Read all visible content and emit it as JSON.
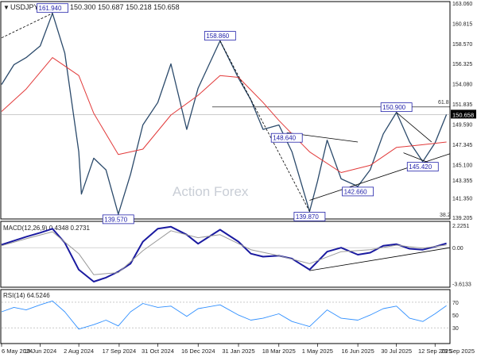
{
  "header": {
    "symbol_label": "USDJPY,Daily",
    "ohlc_values": "150.300 150.687 150.218 150.658",
    "watermark": "Action Forex"
  },
  "colors": {
    "price_line": "#2b4a6b",
    "ma_line": "#e23a3a",
    "macd_line": "#1a1aa0",
    "signal_line": "#9a9a9a",
    "rsi_line": "#2f8fff",
    "label_border": "#2222aa",
    "trendline": "#000000",
    "grid_text": "#222222",
    "current_price_box": "#000000"
  },
  "chart_data": [
    {
      "type": "line",
      "panel": "price",
      "title": "USDJPY,Daily",
      "y_ticks": [
        "163.060",
        "160.815",
        "158.570",
        "156.325",
        "154.080",
        "151.835",
        "149.590",
        "147.345",
        "145.100",
        "143.355",
        "141.350",
        "139.205"
      ],
      "ylim": [
        139.205,
        163.06
      ],
      "current_price": "150.658",
      "fib_label": "61.8",
      "fib_label_low": "38.2",
      "fib_level": 151.5,
      "series": [
        {
          "name": "",
          "x": [
            "2024-05-06",
            "2024-05-20",
            "2024-06-03",
            "2024-06-19",
            "2024-07-03",
            "2024-07-17",
            "2024-08-02",
            "2024-08-05",
            "2024-08-19",
            "2024-09-02",
            "2024-09-16",
            "2024-09-30",
            "2024-10-14",
            "2024-10-31",
            "2024-11-15",
            "2024-12-03",
            "2024-12-16",
            "2025-01-10",
            "2025-01-31",
            "2025-02-14",
            "2025-02-28",
            "2025-03-18",
            "2025-04-02",
            "2025-04-22",
            "2025-05-01",
            "2025-05-12",
            "2025-05-28",
            "2025-06-16",
            "2025-06-30",
            "2025-07-15",
            "2025-07-30",
            "2025-08-14",
            "2025-08-29",
            "2025-09-12",
            "2025-09-25"
          ],
          "values": [
            154.0,
            156.2,
            157.0,
            158.3,
            161.94,
            157.5,
            146.5,
            141.8,
            145.8,
            144.5,
            139.57,
            144.0,
            149.5,
            152.0,
            156.3,
            149.0,
            153.6,
            158.86,
            154.7,
            152.3,
            149.0,
            149.5,
            146.5,
            139.87,
            143.2,
            147.8,
            143.5,
            142.66,
            144.5,
            148.5,
            150.9,
            147.6,
            145.42,
            147.5,
            150.658
          ]
        },
        {
          "name": "",
          "x": [
            "2024-05-06",
            "2024-06-03",
            "2024-07-03",
            "2024-08-02",
            "2024-08-19",
            "2024-09-16",
            "2024-10-14",
            "2024-11-15",
            "2024-12-16",
            "2025-01-10",
            "2025-01-31",
            "2025-02-28",
            "2025-03-18",
            "2025-04-22",
            "2025-05-28",
            "2025-06-30",
            "2025-07-30",
            "2025-08-29",
            "2025-09-25"
          ],
          "values": [
            151.0,
            153.5,
            157.0,
            155.0,
            150.8,
            146.2,
            146.8,
            150.6,
            152.8,
            155.0,
            154.8,
            152.0,
            150.0,
            146.5,
            144.2,
            145.0,
            147.0,
            147.3,
            147.6
          ]
        }
      ],
      "annotations": [
        {
          "label": "161.940",
          "x": "2024-07-03",
          "value": 161.94
        },
        {
          "label": "139.570",
          "x": "2024-09-16",
          "value": 139.57
        },
        {
          "label": "158.860",
          "x": "2025-01-10",
          "value": 158.86
        },
        {
          "label": "148.640",
          "x": "2025-03-27",
          "value": 148.64
        },
        {
          "label": "139.870",
          "x": "2025-04-22",
          "value": 139.87
        },
        {
          "label": "142.660",
          "x": "2025-06-16",
          "value": 142.66
        },
        {
          "label": "150.900",
          "x": "2025-07-30",
          "value": 150.9
        },
        {
          "label": "145.420",
          "x": "2025-08-29",
          "value": 145.42
        }
      ],
      "trendlines": [
        {
          "style": "dashed",
          "from": {
            "x": "2024-05-06",
            "value": 159.2
          },
          "to": {
            "x": "2024-07-03",
            "value": 161.94
          }
        },
        {
          "style": "dashed",
          "from": {
            "x": "2025-01-10",
            "value": 158.86
          },
          "to": {
            "x": "2025-04-22",
            "value": 139.87
          }
        },
        {
          "style": "solid",
          "from": {
            "x": "2025-03-27",
            "value": 148.64
          },
          "to": {
            "x": "2025-06-16",
            "value": 147.6
          }
        },
        {
          "style": "solid",
          "from": {
            "x": "2025-04-22",
            "value": 141.1
          },
          "to": {
            "x": "2025-09-29",
            "value": 146.3
          }
        },
        {
          "style": "solid",
          "from": {
            "x": "2025-07-30",
            "value": 150.9
          },
          "to": {
            "x": "2025-09-08",
            "value": 147.6
          }
        },
        {
          "style": "solid",
          "from": {
            "x": "2025-08-07",
            "value": 146.4
          },
          "to": {
            "x": "2025-09-15",
            "value": 144.9
          }
        }
      ]
    },
    {
      "type": "line",
      "panel": "macd",
      "title": "MACD(12,26,9) 0.4348 0.2731",
      "y_ticks": [
        "2.2251",
        "0.00",
        "-3.6133"
      ],
      "ylim": [
        -3.8,
        2.4
      ],
      "series": [
        {
          "name": "",
          "x": [
            "2024-05-06",
            "2024-05-20",
            "2024-06-03",
            "2024-06-19",
            "2024-07-03",
            "2024-07-17",
            "2024-08-02",
            "2024-08-19",
            "2024-09-02",
            "2024-09-16",
            "2024-09-30",
            "2024-10-14",
            "2024-10-31",
            "2024-11-15",
            "2024-12-03",
            "2024-12-16",
            "2025-01-10",
            "2025-01-31",
            "2025-02-14",
            "2025-02-28",
            "2025-03-18",
            "2025-04-02",
            "2025-04-22",
            "2025-05-12",
            "2025-05-28",
            "2025-06-16",
            "2025-06-30",
            "2025-07-15",
            "2025-07-30",
            "2025-08-14",
            "2025-08-29",
            "2025-09-12",
            "2025-09-25"
          ],
          "values": [
            0.3,
            0.7,
            1.1,
            1.5,
            1.9,
            0.5,
            -2.2,
            -3.4,
            -3.0,
            -2.4,
            -1.6,
            0.6,
            1.9,
            2.1,
            1.3,
            0.4,
            1.8,
            0.6,
            -0.6,
            -0.9,
            -0.8,
            -1.1,
            -2.2,
            -0.4,
            0.0,
            -0.7,
            -0.5,
            0.2,
            0.35,
            -0.1,
            -0.2,
            0.1,
            0.4348
          ]
        },
        {
          "name": "",
          "x": [
            "2024-05-06",
            "2024-06-03",
            "2024-07-03",
            "2024-08-02",
            "2024-08-19",
            "2024-09-16",
            "2024-10-14",
            "2024-11-15",
            "2024-12-16",
            "2025-01-10",
            "2025-02-14",
            "2025-03-18",
            "2025-04-22",
            "2025-05-28",
            "2025-06-30",
            "2025-07-30",
            "2025-08-29",
            "2025-09-25"
          ],
          "values": [
            0.2,
            0.9,
            1.6,
            -0.6,
            -2.7,
            -2.5,
            -0.3,
            1.7,
            1.0,
            1.3,
            -0.2,
            -0.8,
            -1.6,
            -0.4,
            -0.2,
            0.25,
            -0.05,
            0.2731
          ]
        }
      ],
      "trendlines": [
        {
          "style": "solid",
          "from": {
            "x": "2025-04-22",
            "value": -2.3
          },
          "to": {
            "x": "2025-09-29",
            "value": 0.0
          }
        }
      ]
    },
    {
      "type": "line",
      "panel": "rsi",
      "title": "RSI(14) 64.5246",
      "y_ticks": [
        "70",
        "50",
        "30"
      ],
      "ylim": [
        8,
        86
      ],
      "series": [
        {
          "name": "",
          "x": [
            "2024-05-06",
            "2024-05-20",
            "2024-06-03",
            "2024-06-19",
            "2024-07-03",
            "2024-07-17",
            "2024-08-02",
            "2024-08-19",
            "2024-09-02",
            "2024-09-16",
            "2024-09-30",
            "2024-10-14",
            "2024-10-31",
            "2024-11-15",
            "2024-12-03",
            "2024-12-16",
            "2025-01-10",
            "2025-01-31",
            "2025-02-14",
            "2025-02-28",
            "2025-03-18",
            "2025-04-02",
            "2025-04-22",
            "2025-05-12",
            "2025-05-28",
            "2025-06-16",
            "2025-06-30",
            "2025-07-15",
            "2025-07-30",
            "2025-08-14",
            "2025-08-29",
            "2025-09-12",
            "2025-09-25"
          ],
          "values": [
            55,
            62,
            58,
            66,
            72,
            55,
            28,
            35,
            42,
            33,
            55,
            68,
            62,
            64,
            48,
            60,
            66,
            50,
            42,
            45,
            52,
            40,
            32,
            58,
            45,
            42,
            50,
            60,
            64,
            45,
            40,
            52,
            64.5246
          ]
        }
      ]
    }
  ],
  "x_axis": {
    "labels": [
      "6 May 2024",
      "19 Jun 2024",
      "2 Aug 2024",
      "17 Sep 2024",
      "31 Oct 2024",
      "16 Dec 2024",
      "31 Jan 2025",
      "18 Mar 2025",
      "1 May 2025",
      "16 Jun 2025",
      "30 Jul 2025",
      "12 Sep 2025"
    ],
    "label_dates": [
      "2024-05-06",
      "2024-06-19",
      "2024-08-02",
      "2024-09-17",
      "2024-10-31",
      "2024-12-16",
      "2025-01-31",
      "2025-03-18",
      "2025-05-01",
      "2025-06-16",
      "2025-07-30",
      "2025-09-12"
    ],
    "range": [
      "2024-05-06",
      "2025-09-29"
    ],
    "end_label": "29 Sep 2025"
  }
}
